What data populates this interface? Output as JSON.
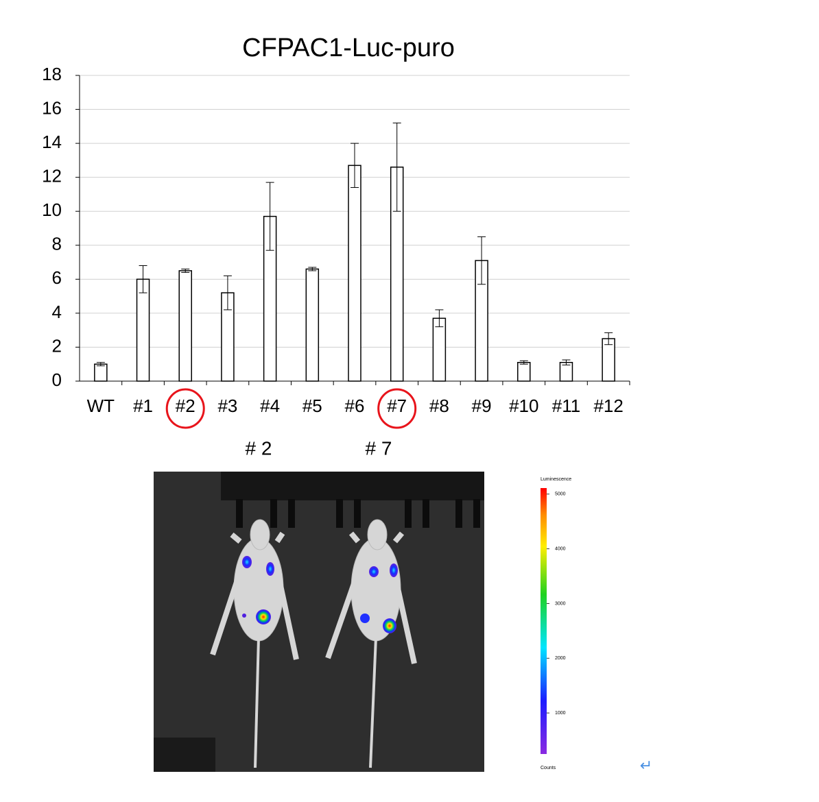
{
  "chart_data": {
    "type": "bar",
    "title": "CFPAC1-Luc-puro",
    "categories": [
      "WT",
      "#1",
      "#2",
      "#3",
      "#4",
      "#5",
      "#6",
      "#7",
      "#8",
      "#9",
      "#10",
      "#11",
      "#12"
    ],
    "values": [
      1.0,
      6.0,
      6.5,
      5.2,
      9.7,
      6.6,
      12.7,
      12.6,
      3.7,
      7.1,
      1.1,
      1.1,
      2.5
    ],
    "errors": [
      0.1,
      0.8,
      0.1,
      1.0,
      2.0,
      0.1,
      1.3,
      2.6,
      0.5,
      1.4,
      0.1,
      0.15,
      0.35
    ],
    "color": "#ffffff",
    "edge_color": "#000000",
    "ylim": [
      0,
      18
    ],
    "yticks": [
      0,
      2,
      4,
      6,
      8,
      10,
      12,
      14,
      16,
      18
    ],
    "grid": true,
    "highlighted_categories": [
      "#2",
      "#7"
    ],
    "highlight_color": "#e8141b"
  },
  "image": {
    "labels": [
      "# 2",
      "# 7"
    ],
    "colorbar": {
      "title": "Luminescence",
      "lim": [
        250,
        5110
      ],
      "ticks": [
        1000,
        2000,
        3000,
        4000,
        5000
      ],
      "footer": "Counts"
    },
    "return_mark": "↵"
  }
}
